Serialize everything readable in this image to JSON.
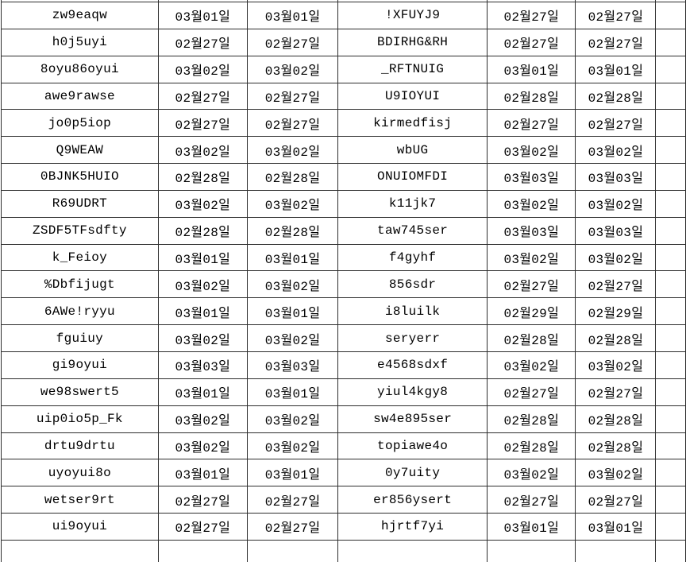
{
  "table": {
    "description": "spreadsheet grid, 6 visible columns: id, date, date, id, date, date",
    "rows": [
      [
        "zw9eaqw",
        "03월01일",
        "03월01일",
        "!XFUYJ9",
        "02월27일",
        "02월27일"
      ],
      [
        "h0j5uyi",
        "02월27일",
        "02월27일",
        "BDIRHG&RH",
        "02월27일",
        "02월27일"
      ],
      [
        "8oyu86oyui",
        "03월02일",
        "03월02일",
        "_RFTNUIG",
        "03월01일",
        "03월01일"
      ],
      [
        "awe9rawse",
        "02월27일",
        "02월27일",
        "U9IOYUI",
        "02월28일",
        "02월28일"
      ],
      [
        "jo0p5iop",
        "02월27일",
        "02월27일",
        "kirmedfisj",
        "02월27일",
        "02월27일"
      ],
      [
        "Q9WEAW",
        "03월02일",
        "03월02일",
        "wbUG",
        "03월02일",
        "03월02일"
      ],
      [
        "0BJNK5HUIO",
        "02월28일",
        "02월28일",
        "ONUIOMFDI",
        "03월03일",
        "03월03일"
      ],
      [
        "R69UDRT",
        "03월02일",
        "03월02일",
        "k11jk7",
        "03월02일",
        "03월02일"
      ],
      [
        "ZSDF5TFsdfty",
        "02월28일",
        "02월28일",
        "taw745ser",
        "03월03일",
        "03월03일"
      ],
      [
        "k_Feioy",
        "03월01일",
        "03월01일",
        "f4gyhf",
        "03월02일",
        "03월02일"
      ],
      [
        "%Dbfijugt",
        "03월02일",
        "03월02일",
        "856sdr",
        "02월27일",
        "02월27일"
      ],
      [
        "6AWe!ryyu",
        "03월01일",
        "03월01일",
        "i8luilk",
        "02월29일",
        "02월29일"
      ],
      [
        "fguiuy",
        "03월02일",
        "03월02일",
        "seryerr",
        "02월28일",
        "02월28일"
      ],
      [
        "gi9oyui",
        "03월03일",
        "03월03일",
        "e4568sdxf",
        "03월02일",
        "03월02일"
      ],
      [
        "we98swert5",
        "03월01일",
        "03월01일",
        "yiul4kgy8",
        "02월27일",
        "02월27일"
      ],
      [
        "uip0io5p_Fk",
        "03월02일",
        "03월02일",
        "sw4e895ser",
        "02월28일",
        "02월28일"
      ],
      [
        "drtu9drtu",
        "03월02일",
        "03월02일",
        "topiawe4o",
        "02월28일",
        "02월28일"
      ],
      [
        "uyoyui8o",
        "03월01일",
        "03월01일",
        "0y7uity",
        "03월02일",
        "03월02일"
      ],
      [
        "wetser9rt",
        "02월27일",
        "02월27일",
        "er856ysert",
        "02월27일",
        "02월27일"
      ],
      [
        "ui9oyui",
        "02월27일",
        "02월27일",
        "hjrtf7yi",
        "03월01일",
        "03월01일"
      ]
    ]
  },
  "colors": {
    "grid_border": "#2e2e2e",
    "cell_background": "#ffffff",
    "text": "#000000"
  }
}
